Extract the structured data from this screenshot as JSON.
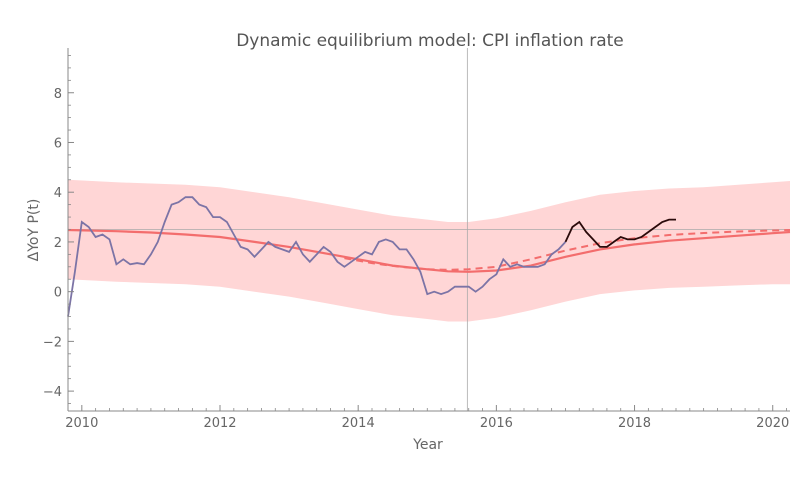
{
  "chart_data": {
    "type": "line",
    "title": "Dynamic equilibrium model: CPI inflation rate",
    "xlabel": "Year",
    "ylabel": "ΔYoY P(t)",
    "xlim": [
      2009.8,
      2020.25
    ],
    "ylim": [
      -4.8,
      9.8
    ],
    "x_ticks": [
      2010,
      2012,
      2014,
      2016,
      2018,
      2020
    ],
    "y_ticks": [
      -4,
      -2,
      0,
      2,
      4,
      6,
      8
    ],
    "reference_lines": {
      "vertical_x": 2015.58,
      "horizontal_y": 2.5
    },
    "colors": {
      "band": "#ffd6d6",
      "model": "#f36d6d",
      "data_before": "#7c74a6",
      "data_after": "#2a0a0a",
      "reference": "#aaaaaa"
    },
    "series": [
      {
        "role": "band",
        "x": [
          2009.8,
          2010.5,
          2011.0,
          2011.5,
          2012.0,
          2012.5,
          2013.0,
          2013.5,
          2014.0,
          2014.5,
          2015.0,
          2015.3,
          2015.6,
          2016.0,
          2016.5,
          2017.0,
          2017.5,
          2018.0,
          2018.5,
          2019.0,
          2019.5,
          2020.0,
          2020.25
        ],
        "lower": [
          0.5,
          0.4,
          0.35,
          0.3,
          0.2,
          0.0,
          -0.2,
          -0.45,
          -0.7,
          -0.95,
          -1.1,
          -1.2,
          -1.2,
          -1.05,
          -0.75,
          -0.4,
          -0.1,
          0.05,
          0.15,
          0.2,
          0.25,
          0.3,
          0.3
        ],
        "upper": [
          4.5,
          4.4,
          4.35,
          4.3,
          4.2,
          4.0,
          3.8,
          3.55,
          3.3,
          3.05,
          2.9,
          2.8,
          2.8,
          2.95,
          3.25,
          3.6,
          3.9,
          4.05,
          4.15,
          4.2,
          4.3,
          4.4,
          4.45
        ]
      },
      {
        "role": "model-solid",
        "x": [
          2009.8,
          2010.5,
          2011.0,
          2011.5,
          2012.0,
          2012.5,
          2013.0,
          2013.5,
          2014.0,
          2014.5,
          2015.0,
          2015.3,
          2015.6,
          2016.0,
          2016.5,
          2017.0,
          2017.5,
          2018.0,
          2018.5,
          2019.0,
          2019.5,
          2020.0,
          2020.25
        ],
        "y": [
          2.48,
          2.43,
          2.38,
          2.3,
          2.2,
          2.0,
          1.8,
          1.55,
          1.3,
          1.05,
          0.9,
          0.82,
          0.8,
          0.85,
          1.05,
          1.4,
          1.7,
          1.9,
          2.05,
          2.15,
          2.25,
          2.35,
          2.4
        ]
      },
      {
        "role": "model-dashed",
        "x": [
          2013.8,
          2014.2,
          2014.6,
          2015.0,
          2015.3,
          2015.6,
          2016.0,
          2016.5,
          2017.0,
          2017.5,
          2018.0,
          2018.5,
          2019.0,
          2019.5,
          2020.0,
          2020.25
        ],
        "y": [
          1.35,
          1.15,
          1.0,
          0.9,
          0.88,
          0.9,
          1.0,
          1.3,
          1.65,
          1.95,
          2.15,
          2.28,
          2.36,
          2.42,
          2.46,
          2.48
        ]
      },
      {
        "role": "data-before",
        "x": [
          2009.8,
          2009.9,
          2010.0,
          2010.1,
          2010.2,
          2010.3,
          2010.4,
          2010.5,
          2010.6,
          2010.7,
          2010.8,
          2010.9,
          2011.0,
          2011.1,
          2011.2,
          2011.3,
          2011.4,
          2011.5,
          2011.6,
          2011.7,
          2011.8,
          2011.9,
          2012.0,
          2012.1,
          2012.2,
          2012.3,
          2012.4,
          2012.5,
          2012.6,
          2012.7,
          2012.8,
          2012.9,
          2013.0,
          2013.1,
          2013.2,
          2013.3,
          2013.4,
          2013.5,
          2013.6,
          2013.7,
          2013.8,
          2013.9,
          2014.0,
          2014.1,
          2014.2,
          2014.3,
          2014.4,
          2014.5,
          2014.6,
          2014.7,
          2014.8,
          2014.9,
          2015.0,
          2015.1,
          2015.2,
          2015.3,
          2015.4,
          2015.5,
          2015.6,
          2015.7,
          2015.8,
          2015.9,
          2016.0,
          2016.1,
          2016.2,
          2016.3,
          2016.4,
          2016.5,
          2016.6,
          2016.7,
          2016.8,
          2016.9,
          2017.0
        ],
        "y": [
          -1.0,
          0.8,
          2.8,
          2.6,
          2.2,
          2.3,
          2.1,
          1.1,
          1.3,
          1.1,
          1.15,
          1.1,
          1.5,
          2.0,
          2.8,
          3.5,
          3.6,
          3.8,
          3.8,
          3.5,
          3.4,
          3.0,
          3.0,
          2.8,
          2.3,
          1.8,
          1.7,
          1.4,
          1.7,
          2.0,
          1.8,
          1.7,
          1.6,
          2.0,
          1.5,
          1.2,
          1.5,
          1.8,
          1.6,
          1.2,
          1.0,
          1.2,
          1.4,
          1.6,
          1.5,
          2.0,
          2.1,
          2.0,
          1.7,
          1.7,
          1.3,
          0.8,
          -0.1,
          0.0,
          -0.1,
          0.0,
          0.2,
          0.2,
          0.2,
          0.0,
          0.2,
          0.5,
          0.7,
          1.3,
          1.0,
          1.1,
          1.0,
          1.0,
          1.0,
          1.1,
          1.5,
          1.7,
          2.0
        ]
      },
      {
        "role": "data-after",
        "x": [
          2017.0,
          2017.1,
          2017.2,
          2017.3,
          2017.4,
          2017.5,
          2017.6,
          2017.7,
          2017.8,
          2017.9,
          2018.0,
          2018.1,
          2018.2,
          2018.3,
          2018.4,
          2018.5,
          2018.6
        ],
        "y": [
          2.0,
          2.6,
          2.8,
          2.4,
          2.1,
          1.8,
          1.8,
          2.0,
          2.2,
          2.1,
          2.1,
          2.2,
          2.4,
          2.6,
          2.8,
          2.9,
          2.9
        ]
      }
    ]
  }
}
